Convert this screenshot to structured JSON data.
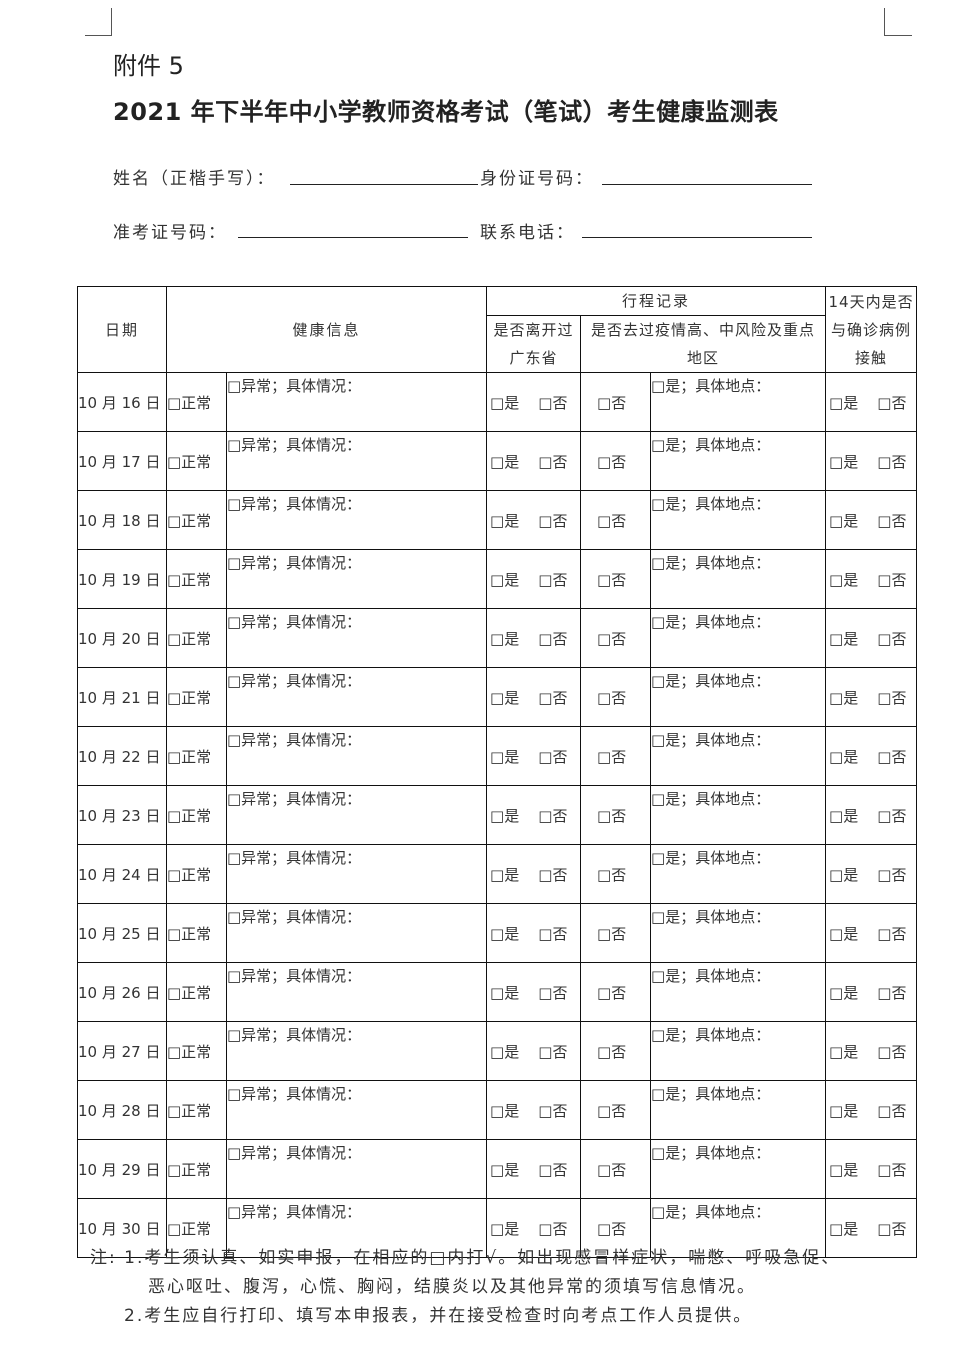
{
  "attachment": "附件 5",
  "title": "2021 年下半年中小学教师资格考试（笔试）考生健康监测表",
  "fields": {
    "name": "姓名（正楷手写）：",
    "id": "身份证号码：",
    "ticket": "准考证号码：",
    "phone": "联系电话："
  },
  "header": {
    "date": "日期",
    "health": "健康信息",
    "travel": "行程记录",
    "left_province": "是否离开过广东省",
    "risk_area": "是否去过疫情高、中风险及重点地区",
    "contact": "14天内是否与确诊病例接触"
  },
  "cell_text": {
    "normal": "□正常",
    "abnormal": "□异常；具体情况：",
    "yes": "□是",
    "no": "□否",
    "yes_place": "□是；具体地点："
  },
  "dates": [
    "10 月 16 日",
    "10 月 17 日",
    "10 月 18 日",
    "10 月 19 日",
    "10 月 20 日",
    "10 月 21 日",
    "10 月 22 日",
    "10 月 23 日",
    "10 月 24 日",
    "10 月 25 日",
    "10 月 26 日",
    "10 月 27 日",
    "10 月 28 日",
    "10 月 29 日",
    "10 月 30 日"
  ],
  "notes": [
    "注: 1.考生须认真、如实申报，在相应的□内打√。如出现感冒样症状，喘憋、呼吸急促、",
    "恶心呕吐、腹泻，心慌、胸闷，结膜炎以及其他异常的须填写信息情况。",
    "2.考生应自行打印、填写本申报表，并在接受检查时向考点工作人员提供。"
  ]
}
